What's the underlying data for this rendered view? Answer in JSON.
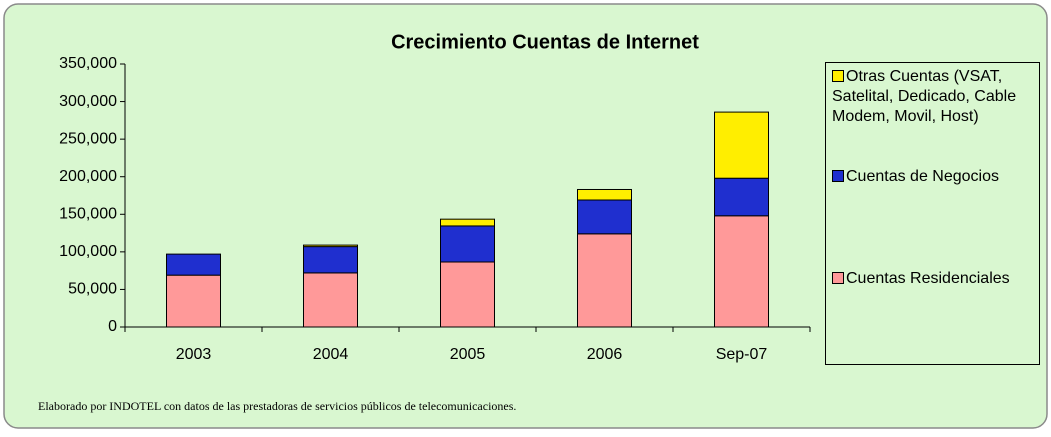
{
  "chart_data": {
    "type": "bar",
    "stacked": true,
    "title": "Crecimiento Cuentas de Internet",
    "note": "Elaborado por INDOTEL con datos de las prestadoras de servicios públicos de telecomunicaciones.",
    "categories": [
      "2003",
      "2004",
      "2005",
      "2006",
      "Sep-07"
    ],
    "series": [
      {
        "name": "Cuentas Residenciales",
        "color": "#ff9999",
        "values": [
          69000,
          72000,
          86500,
          124000,
          148000
        ]
      },
      {
        "name": "Cuentas de Negocios",
        "color": "#1f2fcf",
        "values": [
          28000,
          35000,
          48000,
          45000,
          50000
        ]
      },
      {
        "name": "Otras Cuentas (VSAT, Satelital, Dedicado, Cable Modem, Movil, Host)",
        "color": "#ffee00",
        "values": [
          0,
          2000,
          9000,
          14000,
          88000
        ]
      }
    ],
    "ylim": [
      0,
      350000
    ],
    "yticks": [
      0,
      {
        "value": 50000,
        "label": "50,000"
      },
      {
        "value": 100000,
        "label": "100,000"
      },
      {
        "value": 150000,
        "label": "150,000"
      },
      {
        "value": 200000,
        "label": "200,000"
      },
      {
        "value": 250000,
        "label": "250,000"
      },
      {
        "value": 300000,
        "label": "300,000"
      },
      {
        "value": 350000,
        "label": "350,000"
      }
    ],
    "legend": "right"
  }
}
